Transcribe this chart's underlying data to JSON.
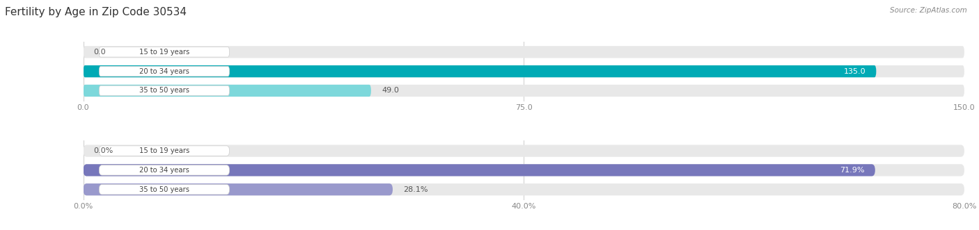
{
  "title": "Fertility by Age in Zip Code 30534",
  "source": "Source: ZipAtlas.com",
  "top_chart": {
    "categories": [
      "15 to 19 years",
      "20 to 34 years",
      "35 to 50 years"
    ],
    "values": [
      0.0,
      135.0,
      49.0
    ],
    "xlim": [
      0,
      150.0
    ],
    "xticks": [
      0.0,
      75.0,
      150.0
    ],
    "xtick_labels": [
      "0.0",
      "75.0",
      "150.0"
    ],
    "bar_color": [
      "#7dd8db",
      "#00aab5",
      "#7dd8db"
    ],
    "bar_bg": "#e8e8e8"
  },
  "bottom_chart": {
    "categories": [
      "15 to 19 years",
      "20 to 34 years",
      "35 to 50 years"
    ],
    "values": [
      0.0,
      71.9,
      28.1
    ],
    "xlim": [
      0,
      80.0
    ],
    "xticks": [
      0.0,
      40.0,
      80.0
    ],
    "xtick_labels": [
      "0.0%",
      "40.0%",
      "80.0%"
    ],
    "bar_color": [
      "#9999cc",
      "#7777bb",
      "#9999cc"
    ],
    "bar_bg": "#e8e8e8"
  },
  "label_color": "#444444",
  "value_color_inside": "#ffffff",
  "value_color_outside": "#555555",
  "bg_color": "#ffffff",
  "bar_height": 0.62,
  "label_box_color": "#ffffff",
  "label_box_edge": "#cccccc"
}
